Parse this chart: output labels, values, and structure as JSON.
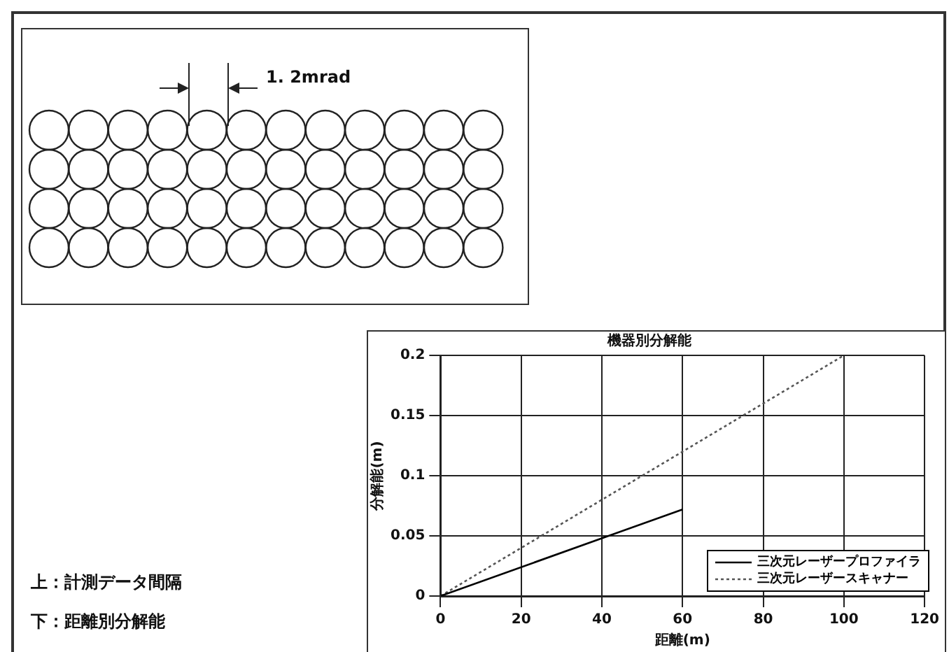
{
  "chart_data": {
    "type": "line",
    "title": "機器別分解能",
    "xlabel": "距離(m)",
    "ylabel": "分解能(m)",
    "series": [
      {
        "name": "三次元レーザープロファイラ",
        "color": "#000000",
        "line_style": "solid",
        "x": [
          0,
          60
        ],
        "values": [
          0,
          0.072
        ]
      },
      {
        "name": "三次元レーザースキャナー",
        "color": "#555555",
        "line_style": "dotted",
        "x": [
          0,
          100
        ],
        "values": [
          0,
          0.2
        ]
      }
    ],
    "xlim": [
      0,
      120
    ],
    "xticks": [
      0,
      20,
      40,
      60,
      80,
      100,
      120
    ],
    "ylim": [
      0,
      0.2
    ],
    "yticks": [
      0,
      0.05,
      0.1,
      0.15,
      0.2
    ],
    "grid": true,
    "legend": "bottom right",
    "marker": "none",
    "annotations": [
      "1. 2mrad",
      "上：計測データ間隔",
      "下：距離別分解能"
    ]
  }
}
